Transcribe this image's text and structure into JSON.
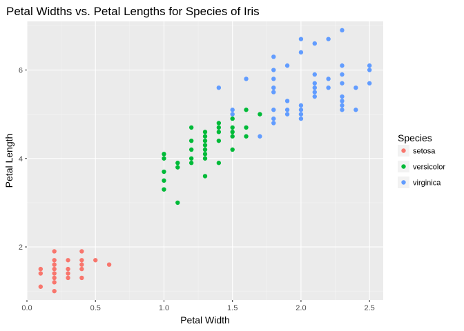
{
  "chart_data": {
    "type": "scatter",
    "title": "Petal Widths vs. Petal Lengths for Species of Iris",
    "xlabel": "Petal Width",
    "ylabel": "Petal Length",
    "xlim": [
      0.0,
      2.6
    ],
    "ylim": [
      0.8,
      7.1
    ],
    "x_ticks": [
      0.0,
      0.5,
      1.0,
      1.5,
      2.0,
      2.5
    ],
    "x_tick_labels": [
      "0.0",
      "0.5",
      "1.0",
      "1.5",
      "2.0",
      "2.5"
    ],
    "y_ticks": [
      2,
      4,
      6
    ],
    "y_tick_labels": [
      "2",
      "4",
      "6"
    ],
    "grid": true,
    "legend": {
      "title": "Species",
      "position": "right"
    },
    "series": [
      {
        "name": "setosa",
        "color": "#F8766D",
        "points": [
          [
            0.1,
            1.5
          ],
          [
            0.1,
            1.4
          ],
          [
            0.1,
            1.1
          ],
          [
            0.2,
            1.0
          ],
          [
            0.2,
            1.2
          ],
          [
            0.2,
            1.3
          ],
          [
            0.2,
            1.4
          ],
          [
            0.2,
            1.5
          ],
          [
            0.2,
            1.6
          ],
          [
            0.2,
            1.7
          ],
          [
            0.2,
            1.9
          ],
          [
            0.3,
            1.3
          ],
          [
            0.3,
            1.4
          ],
          [
            0.3,
            1.5
          ],
          [
            0.3,
            1.7
          ],
          [
            0.4,
            1.3
          ],
          [
            0.4,
            1.5
          ],
          [
            0.4,
            1.6
          ],
          [
            0.4,
            1.7
          ],
          [
            0.4,
            1.9
          ],
          [
            0.5,
            1.7
          ],
          [
            0.6,
            1.6
          ]
        ]
      },
      {
        "name": "versicolor",
        "color": "#00BA38",
        "points": [
          [
            1.0,
            3.3
          ],
          [
            1.0,
            3.5
          ],
          [
            1.0,
            3.7
          ],
          [
            1.0,
            4.0
          ],
          [
            1.0,
            4.1
          ],
          [
            1.1,
            3.0
          ],
          [
            1.1,
            3.8
          ],
          [
            1.1,
            3.9
          ],
          [
            1.2,
            3.9
          ],
          [
            1.2,
            4.0
          ],
          [
            1.2,
            4.2
          ],
          [
            1.2,
            4.4
          ],
          [
            1.2,
            4.7
          ],
          [
            1.3,
            3.6
          ],
          [
            1.3,
            4.0
          ],
          [
            1.3,
            4.1
          ],
          [
            1.3,
            4.2
          ],
          [
            1.3,
            4.3
          ],
          [
            1.3,
            4.4
          ],
          [
            1.3,
            4.5
          ],
          [
            1.3,
            4.6
          ],
          [
            1.4,
            3.9
          ],
          [
            1.4,
            4.4
          ],
          [
            1.4,
            4.6
          ],
          [
            1.4,
            4.7
          ],
          [
            1.4,
            4.8
          ],
          [
            1.5,
            4.2
          ],
          [
            1.5,
            4.5
          ],
          [
            1.5,
            4.6
          ],
          [
            1.5,
            4.7
          ],
          [
            1.5,
            4.9
          ],
          [
            1.6,
            4.5
          ],
          [
            1.6,
            4.7
          ],
          [
            1.6,
            5.1
          ],
          [
            1.7,
            5.0
          ]
        ]
      },
      {
        "name": "virginica",
        "color": "#619CFF",
        "points": [
          [
            1.4,
            5.6
          ],
          [
            1.5,
            5.0
          ],
          [
            1.5,
            5.1
          ],
          [
            1.6,
            5.8
          ],
          [
            1.7,
            4.5
          ],
          [
            1.8,
            4.8
          ],
          [
            1.8,
            4.9
          ],
          [
            1.8,
            5.1
          ],
          [
            1.8,
            5.5
          ],
          [
            1.8,
            5.6
          ],
          [
            1.8,
            5.8
          ],
          [
            1.8,
            6.0
          ],
          [
            1.8,
            6.3
          ],
          [
            1.9,
            5.0
          ],
          [
            1.9,
            5.1
          ],
          [
            1.9,
            5.3
          ],
          [
            1.9,
            6.1
          ],
          [
            2.0,
            4.9
          ],
          [
            2.0,
            5.0
          ],
          [
            2.0,
            5.1
          ],
          [
            2.0,
            5.2
          ],
          [
            2.0,
            6.4
          ],
          [
            2.0,
            6.7
          ],
          [
            2.1,
            5.4
          ],
          [
            2.1,
            5.5
          ],
          [
            2.1,
            5.6
          ],
          [
            2.1,
            5.7
          ],
          [
            2.1,
            5.9
          ],
          [
            2.1,
            6.6
          ],
          [
            2.2,
            5.6
          ],
          [
            2.2,
            5.8
          ],
          [
            2.2,
            6.7
          ],
          [
            2.3,
            5.1
          ],
          [
            2.3,
            5.2
          ],
          [
            2.3,
            5.3
          ],
          [
            2.3,
            5.4
          ],
          [
            2.3,
            5.7
          ],
          [
            2.3,
            5.9
          ],
          [
            2.3,
            6.1
          ],
          [
            2.3,
            6.9
          ],
          [
            2.4,
            5.1
          ],
          [
            2.4,
            5.6
          ],
          [
            2.5,
            5.7
          ],
          [
            2.5,
            6.0
          ],
          [
            2.5,
            6.1
          ]
        ]
      }
    ]
  }
}
